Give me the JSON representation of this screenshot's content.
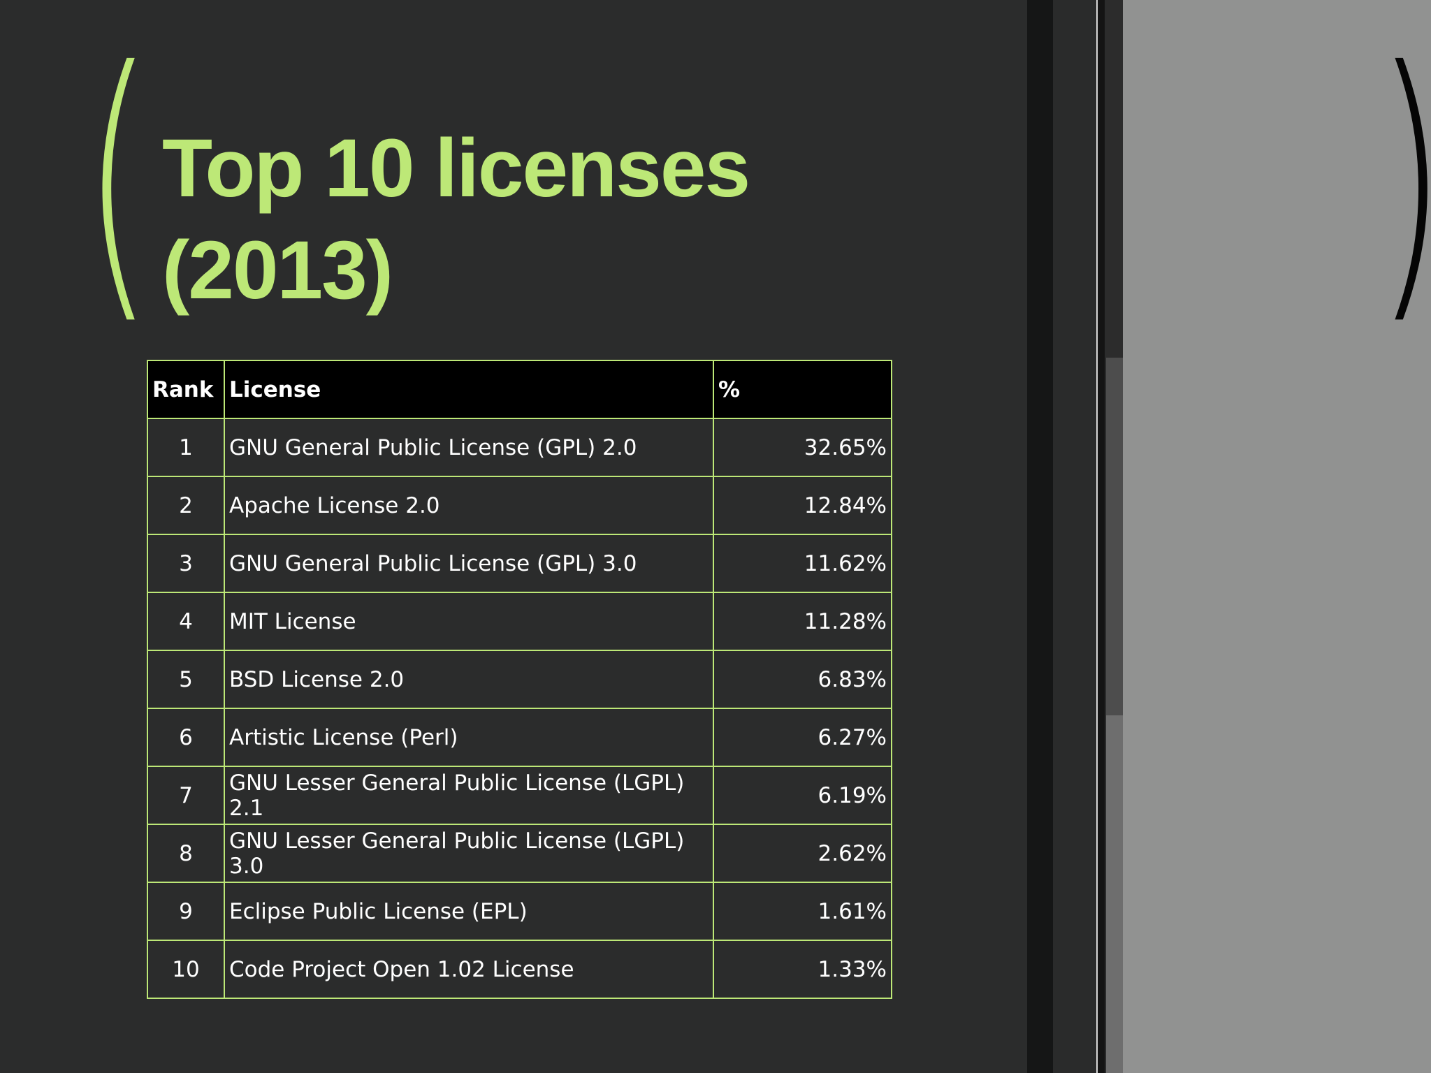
{
  "slide": {
    "title_line1": "Top 10 licenses",
    "title_line2": "(2013)",
    "open_paren": "(",
    "close_paren": ")"
  },
  "table": {
    "headers": {
      "rank": "Rank",
      "license": "License",
      "percent": "%"
    },
    "rows": [
      {
        "rank": "1",
        "license": "GNU General Public License (GPL) 2.0",
        "percent": "32.65%"
      },
      {
        "rank": "2",
        "license": "Apache License 2.0",
        "percent": "12.84%"
      },
      {
        "rank": "3",
        "license": "GNU General Public License (GPL) 3.0",
        "percent": "11.62%"
      },
      {
        "rank": "4",
        "license": "MIT License",
        "percent": "11.28%"
      },
      {
        "rank": "5",
        "license": "BSD License 2.0",
        "percent": "6.83%"
      },
      {
        "rank": "6",
        "license": "Artistic License (Perl)",
        "percent": "6.27%"
      },
      {
        "rank": "7",
        "license": "GNU Lesser General Public License (LGPL) 2.1",
        "percent": "6.19%"
      },
      {
        "rank": "8",
        "license": "GNU Lesser General Public License (LGPL) 3.0",
        "percent": "2.62%"
      },
      {
        "rank": "9",
        "license": "Eclipse Public License (EPL)",
        "percent": "1.61%"
      },
      {
        "rank": "10",
        "license": "Code Project Open 1.02 License",
        "percent": "1.33%"
      }
    ]
  },
  "colors": {
    "accent": "#bde877",
    "background": "#2b2c2c",
    "header_bg": "#000000",
    "side_panel": "#919291"
  }
}
